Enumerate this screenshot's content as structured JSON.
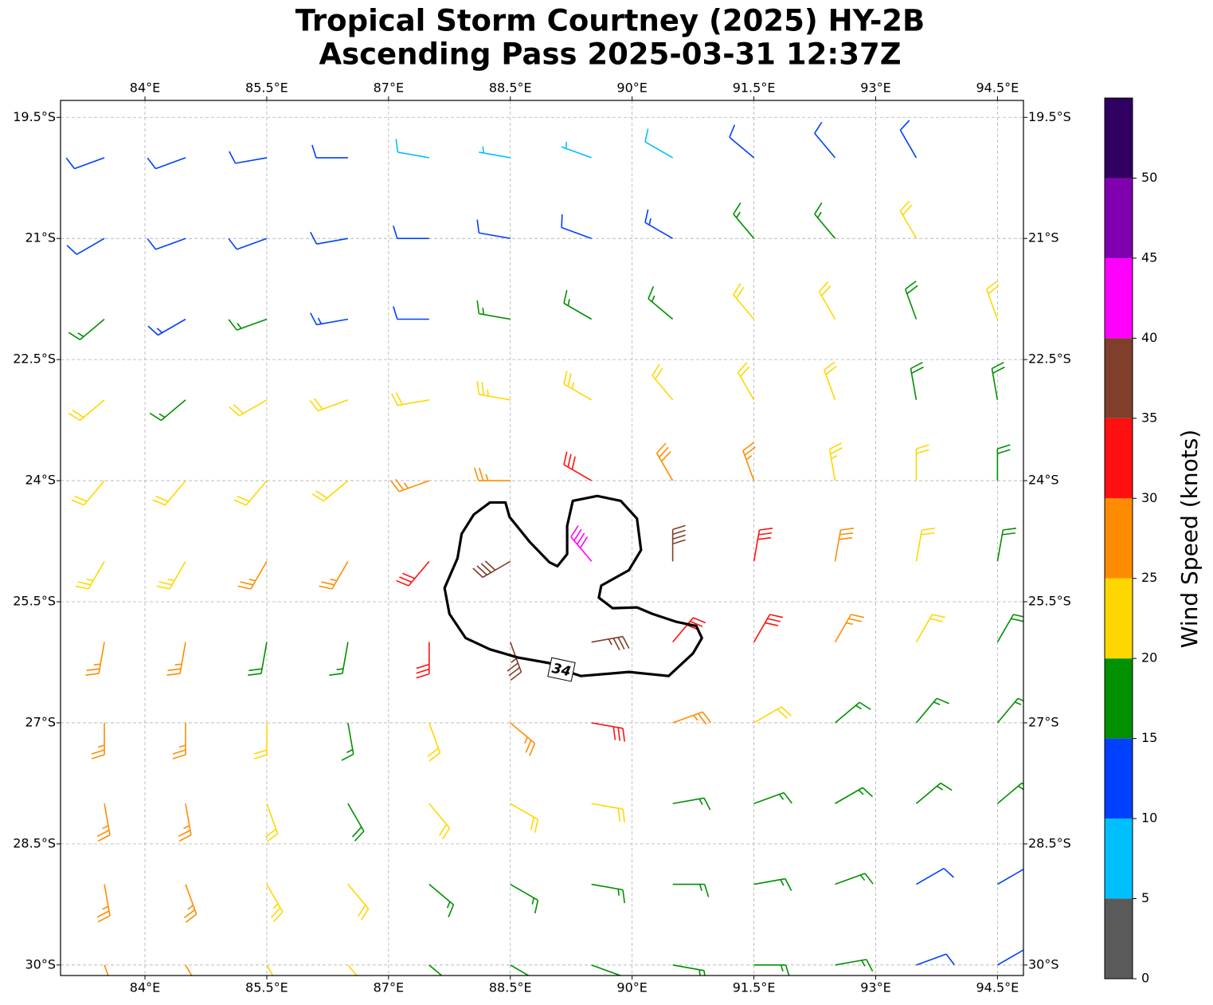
{
  "chart_data": {
    "type": "wind_barbs",
    "title": [
      "Tropical Storm Courtney (2025) HY-2B",
      "Ascending Pass 2025-03-31 12:37Z"
    ],
    "xlim": [
      82.96,
      94.82
    ],
    "ylim": [
      -30.13,
      -19.29
    ],
    "xticks": [
      {
        "value": 84,
        "label": "84°E"
      },
      {
        "value": 85.5,
        "label": "85.5°E"
      },
      {
        "value": 87,
        "label": "87°E"
      },
      {
        "value": 88.5,
        "label": "88.5°E"
      },
      {
        "value": 90,
        "label": "90°E"
      },
      {
        "value": 91.5,
        "label": "91.5°E"
      },
      {
        "value": 93,
        "label": "93°E"
      },
      {
        "value": 94.5,
        "label": "94.5°E"
      }
    ],
    "yticks": [
      {
        "value": -19.5,
        "label": "19.5°S"
      },
      {
        "value": -21,
        "label": "21°S"
      },
      {
        "value": -22.5,
        "label": "22.5°S"
      },
      {
        "value": -24,
        "label": "24°S"
      },
      {
        "value": -25.5,
        "label": "25.5°S"
      },
      {
        "value": -27,
        "label": "27°S"
      },
      {
        "value": -28.5,
        "label": "28.5°S"
      },
      {
        "value": -30,
        "label": "30°S"
      }
    ],
    "grid": true,
    "lon": [
      83.5,
      84.5,
      85.5,
      86.5,
      87.5,
      88.5,
      89.5,
      90.5,
      91.5,
      92.5,
      93.5,
      94.5
    ],
    "lat": [
      -20,
      -21,
      -22,
      -23,
      -24,
      -25,
      -26,
      -27,
      -28,
      -29,
      -30
    ],
    "speed": [
      [
        12,
        12,
        12,
        12,
        8,
        7,
        7,
        9,
        12,
        12,
        12,
        null
      ],
      [
        12,
        12,
        12,
        12,
        12,
        10,
        12,
        14,
        17,
        17,
        20,
        null
      ],
      [
        17,
        14,
        17,
        14,
        12,
        17,
        17,
        17,
        22,
        20,
        18,
        20
      ],
      [
        22,
        17,
        22,
        22,
        20,
        23,
        23,
        22,
        22,
        22,
        18,
        18
      ],
      [
        22,
        22,
        22,
        22,
        27,
        25,
        32,
        28,
        27,
        23,
        22,
        18
      ],
      [
        24,
        24,
        26,
        27,
        32,
        38,
        42,
        38,
        32,
        28,
        22,
        18
      ],
      [
        26,
        26,
        18,
        17,
        30,
        36,
        37,
        32,
        30,
        26,
        22,
        18
      ],
      [
        27,
        27,
        22,
        17,
        22,
        27,
        30,
        27,
        20,
        17,
        17,
        17
      ],
      [
        27,
        27,
        22,
        18,
        22,
        22,
        20,
        17,
        17,
        17,
        17,
        17
      ],
      [
        27,
        27,
        24,
        22,
        17,
        17,
        17,
        17,
        17,
        15,
        12,
        12
      ],
      [
        27,
        27,
        24,
        22,
        17,
        17,
        17,
        17,
        17,
        17,
        12,
        12
      ]
    ],
    "direction": [
      [
        250,
        250,
        260,
        270,
        280,
        280,
        290,
        300,
        310,
        320,
        330,
        null
      ],
      [
        240,
        250,
        250,
        260,
        270,
        280,
        290,
        300,
        320,
        320,
        330,
        null
      ],
      [
        230,
        240,
        250,
        260,
        270,
        280,
        300,
        310,
        320,
        330,
        340,
        340
      ],
      [
        230,
        230,
        240,
        250,
        260,
        280,
        300,
        320,
        330,
        340,
        350,
        350
      ],
      [
        220,
        220,
        220,
        230,
        250,
        270,
        300,
        330,
        340,
        350,
        0,
        0
      ],
      [
        210,
        210,
        210,
        210,
        220,
        240,
        320,
        0,
        10,
        10,
        10,
        10
      ],
      [
        190,
        190,
        190,
        190,
        180,
        160,
        80,
        40,
        30,
        30,
        30,
        30
      ],
      [
        180,
        180,
        180,
        170,
        160,
        130,
        100,
        70,
        60,
        50,
        40,
        40
      ],
      [
        170,
        170,
        160,
        150,
        140,
        120,
        100,
        80,
        70,
        60,
        50,
        50
      ],
      [
        170,
        160,
        150,
        140,
        130,
        120,
        100,
        90,
        80,
        70,
        60,
        60
      ],
      [
        160,
        150,
        150,
        140,
        130,
        120,
        110,
        100,
        90,
        80,
        70,
        60
      ]
    ],
    "contour": {
      "level": 34,
      "lon": [
        89.13,
        89.37,
        89.96,
        90.45,
        90.75,
        90.86,
        90.79,
        90.55,
        90.25,
        90.06,
        89.76,
        89.59,
        89.62,
        89.96,
        90.11,
        90.06,
        89.86,
        89.57,
        89.27,
        89.2,
        89.2,
        89.08,
        88.98,
        88.74,
        88.49,
        88.44,
        88.25,
        88.05,
        87.9,
        87.85,
        87.69,
        87.75,
        87.95,
        88.25,
        88.59,
        88.98
      ],
      "lat": [
        -26.34,
        -26.42,
        -26.37,
        -26.42,
        -26.14,
        -25.95,
        -25.8,
        -25.75,
        -25.65,
        -25.57,
        -25.58,
        -25.45,
        -25.3,
        -25.11,
        -24.86,
        -24.47,
        -24.25,
        -24.19,
        -24.25,
        -24.56,
        -24.91,
        -25.06,
        -25.01,
        -24.76,
        -24.45,
        -24.27,
        -24.27,
        -24.42,
        -24.66,
        -24.96,
        -25.33,
        -25.65,
        -25.95,
        -26.09,
        -26.19,
        -26.26
      ]
    },
    "colorbar": {
      "label": "Wind Speed (knots)",
      "levels": [
        0,
        5,
        10,
        15,
        20,
        25,
        30,
        35,
        40,
        45,
        50,
        55
      ],
      "colors": [
        "#5a5a5a",
        "#00bfff",
        "#0040ff",
        "#009000",
        "#ffd700",
        "#ff8c00",
        "#ff1010",
        "#7f3f2a",
        "#ff00ff",
        "#8000b0",
        "#300060"
      ],
      "ticks": [
        0,
        5,
        10,
        15,
        20,
        25,
        30,
        35,
        40,
        45,
        50
      ]
    }
  }
}
